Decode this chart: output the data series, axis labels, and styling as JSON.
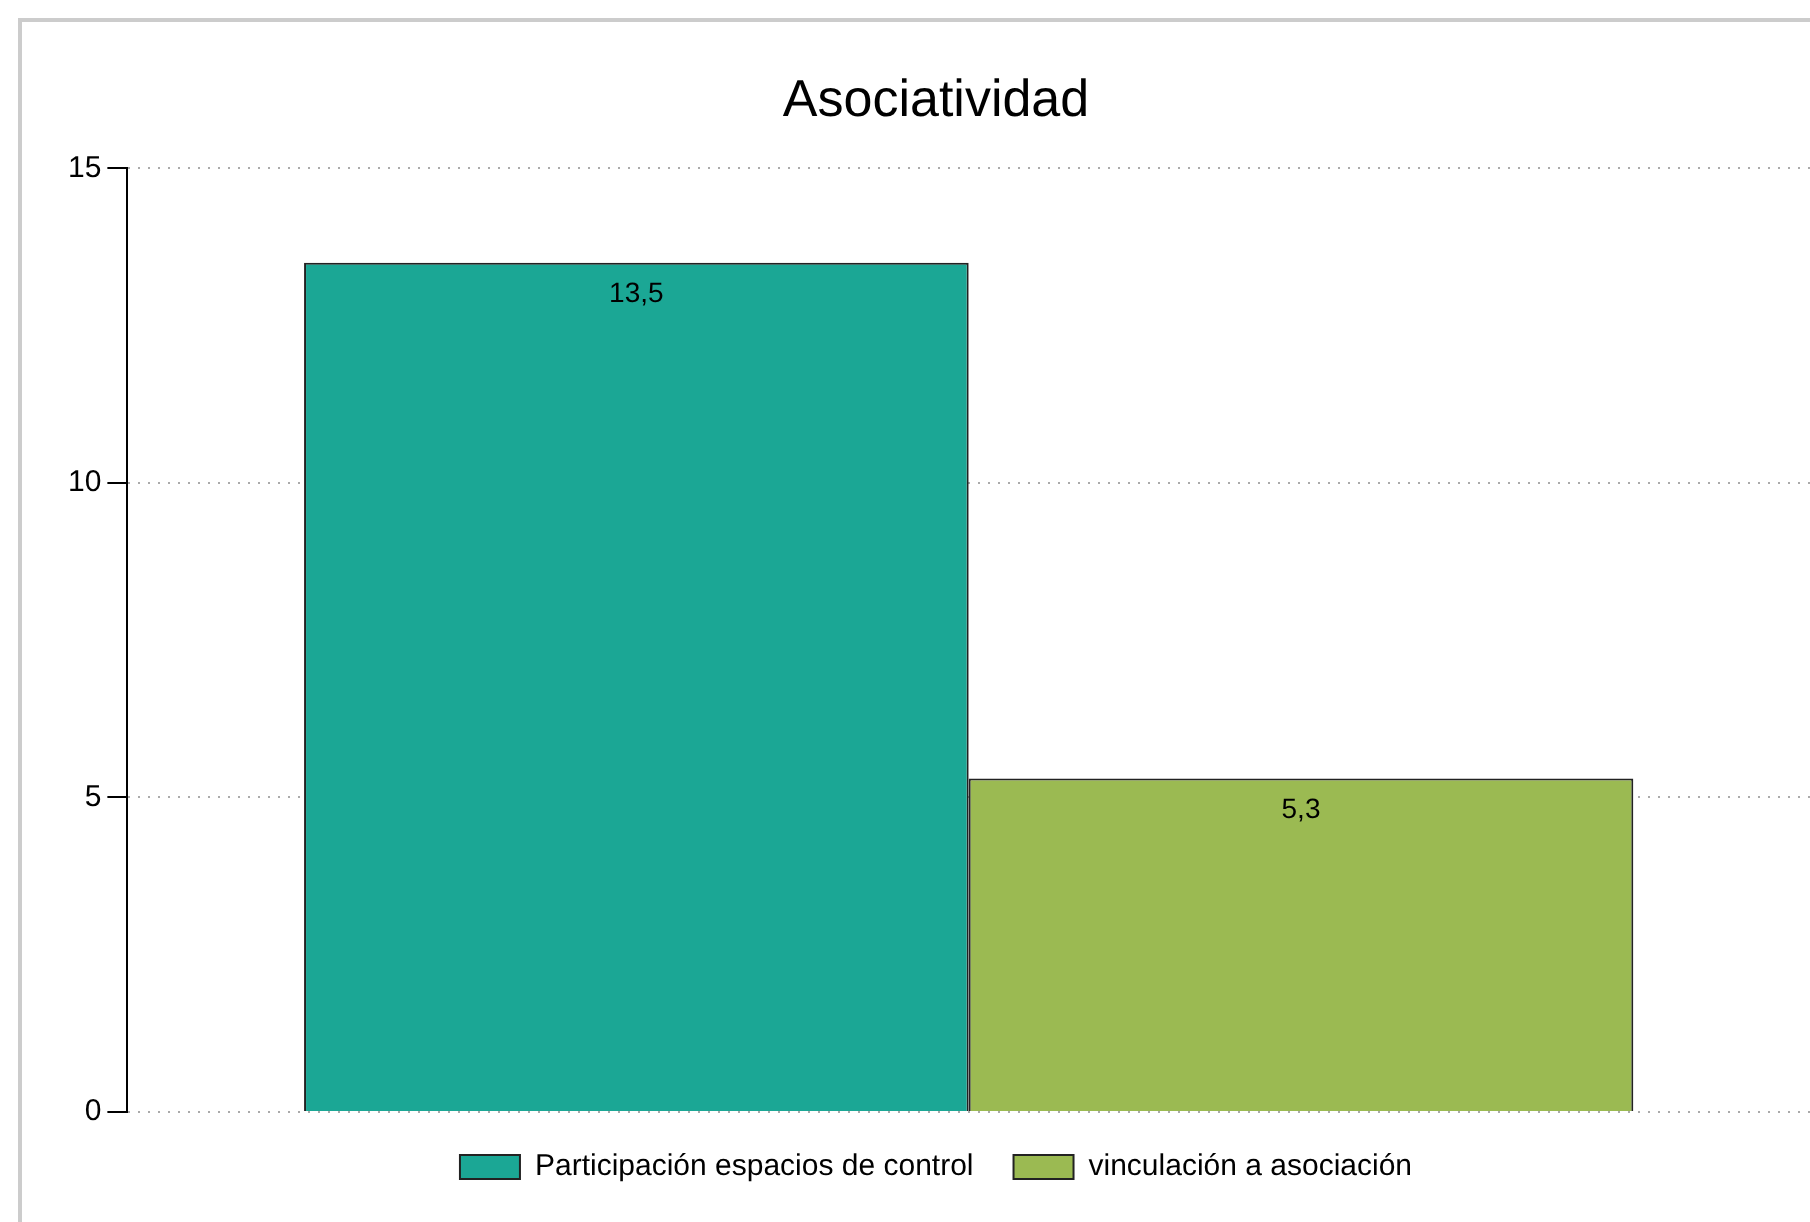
{
  "chart_data": {
    "type": "bar",
    "title": "Asociatividad",
    "categories": [
      null
    ],
    "series": [
      {
        "name": "Participación espacios de control",
        "color": "#1ba795",
        "values": [
          13.5
        ],
        "value_labels": [
          "13,5"
        ]
      },
      {
        "name": "vinculación a asociación",
        "color": "#9bba52",
        "values": [
          5.3
        ],
        "value_labels": [
          "5,3"
        ]
      }
    ],
    "ylim": [
      0,
      15
    ],
    "yticks": [
      0,
      5,
      10,
      15
    ],
    "grid": "y",
    "legend": "bottom"
  }
}
